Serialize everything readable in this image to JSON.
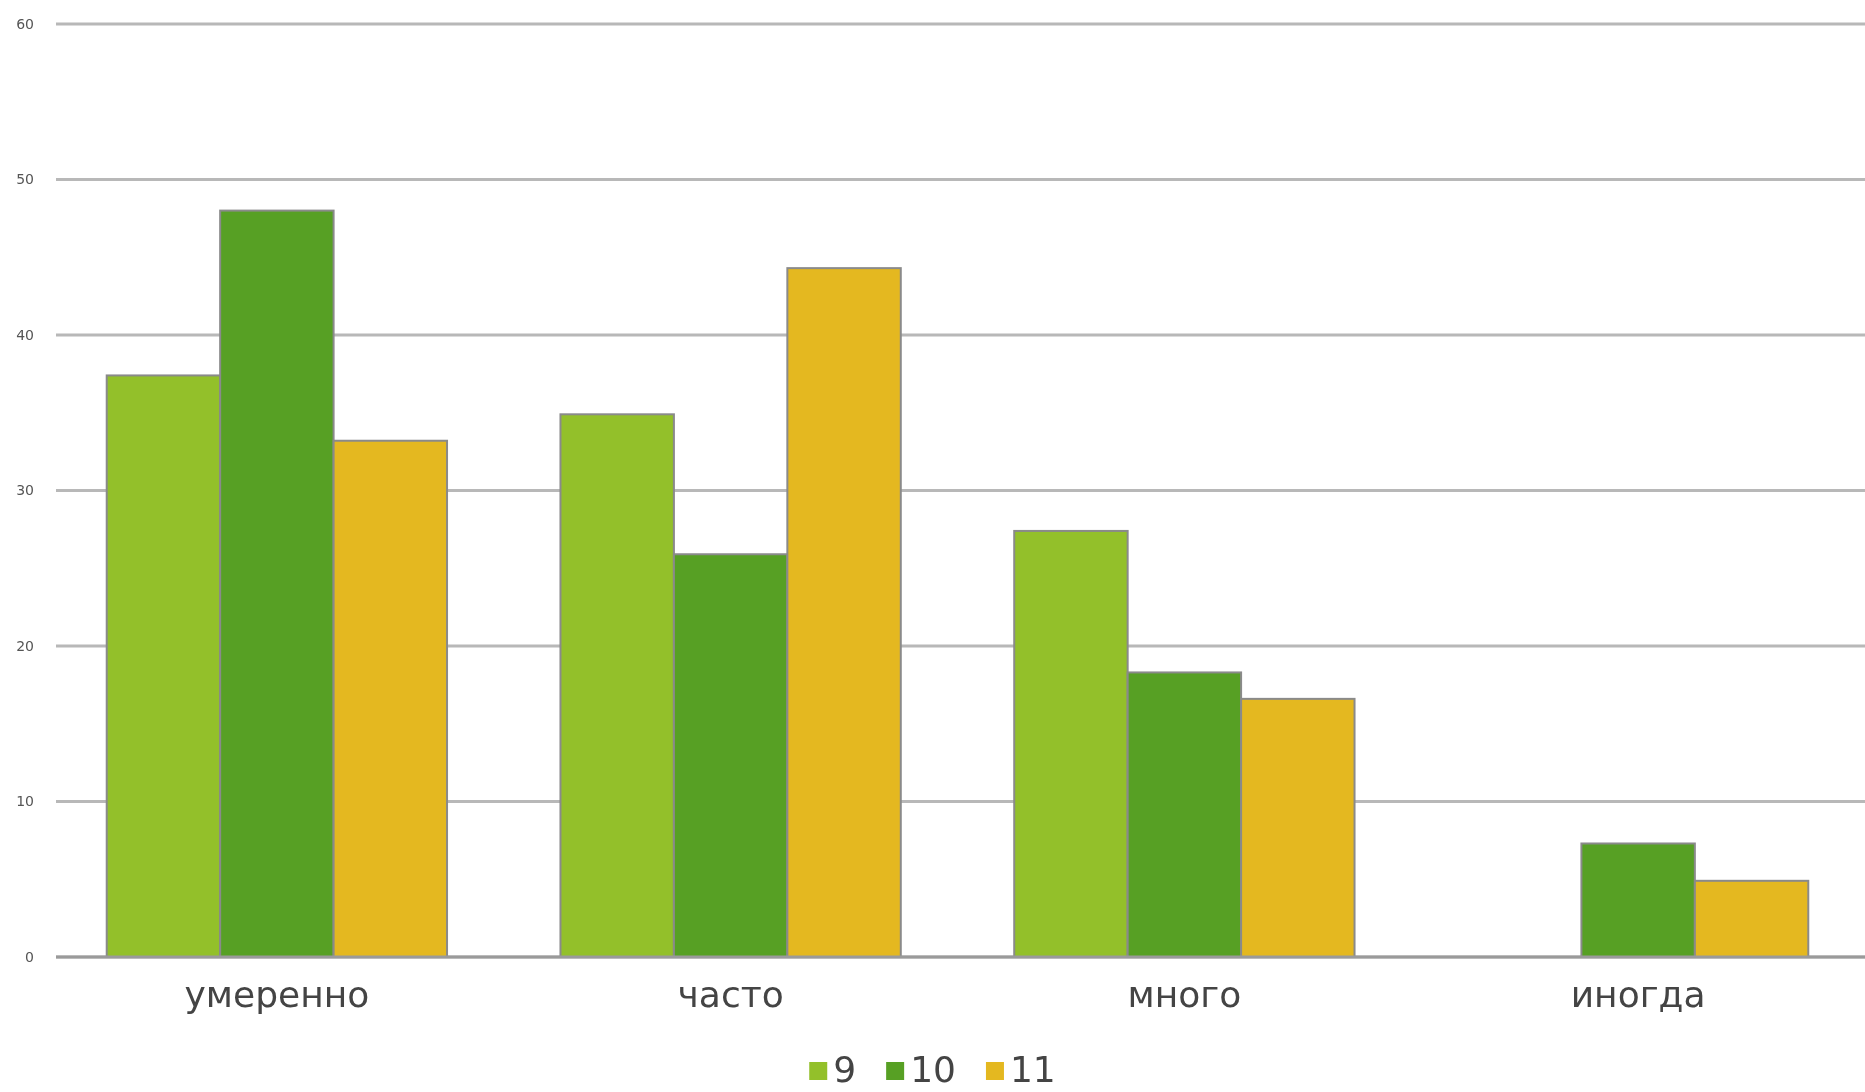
{
  "chart_data": {
    "type": "bar",
    "categories": [
      "умеренно",
      "часто",
      "много",
      "иногда"
    ],
    "series": [
      {
        "name": "9",
        "color": "#93c02a",
        "values": [
          37.4,
          34.9,
          27.4,
          null
        ]
      },
      {
        "name": "10",
        "color": "#57a024",
        "values": [
          48.0,
          25.9,
          18.3,
          7.3
        ]
      },
      {
        "name": "11",
        "color": "#e4b820",
        "values": [
          33.2,
          44.3,
          16.6,
          4.9
        ]
      }
    ],
    "ylim": [
      0,
      60
    ],
    "yticks": [
      0,
      10,
      20,
      30,
      40,
      50,
      60
    ],
    "grid": "y",
    "legend": "bottom"
  }
}
